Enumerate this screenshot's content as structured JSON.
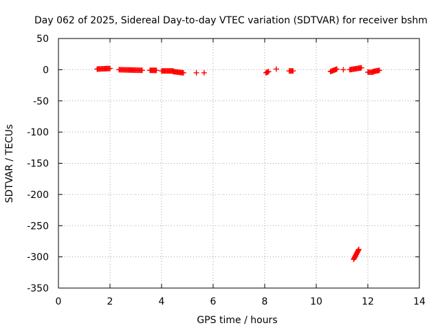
{
  "chart_data": {
    "type": "scatter",
    "title": "Day 062 of 2025, Sidereal Day-to-day VTEC variation (SDTVAR) for receiver bshm",
    "xlabel": "GPS time / hours",
    "ylabel": "SDTVAR / TECUs",
    "xlim": [
      0,
      14
    ],
    "ylim": [
      -350,
      50
    ],
    "xticks": [
      0,
      2,
      4,
      6,
      8,
      10,
      12,
      14
    ],
    "yticks": [
      50,
      0,
      -50,
      -100,
      -150,
      -200,
      -250,
      -300,
      -350
    ],
    "grid": true,
    "marker": "plus",
    "series": [
      {
        "name": "SDTVAR",
        "color": "#ff0000",
        "segments": [
          {
            "x_start": 1.5,
            "x_end": 2.0,
            "y_start": 1,
            "y_end": 2
          },
          {
            "x_start": 2.35,
            "x_end": 3.25,
            "y_start": 0,
            "y_end": -1
          },
          {
            "x_start": 3.55,
            "x_end": 3.8,
            "y_start": -1,
            "y_end": -1
          },
          {
            "x_start": 4.0,
            "x_end": 4.45,
            "y_start": -2,
            "y_end": -2
          },
          {
            "x_start": 4.45,
            "x_end": 4.85,
            "y_start": -3,
            "y_end": -5
          },
          {
            "x_start": 8.05,
            "x_end": 8.15,
            "y_start": -5,
            "y_end": -3
          },
          {
            "x_start": 8.95,
            "x_end": 9.1,
            "y_start": -2,
            "y_end": -2
          },
          {
            "x_start": 10.55,
            "x_end": 10.8,
            "y_start": -3,
            "y_end": 1
          },
          {
            "x_start": 11.3,
            "x_end": 11.75,
            "y_start": 0,
            "y_end": 3
          },
          {
            "x_start": 12.0,
            "x_end": 12.2,
            "y_start": -4,
            "y_end": -4
          },
          {
            "x_start": 12.2,
            "x_end": 12.45,
            "y_start": -3,
            "y_end": -1
          },
          {
            "x_start": 11.45,
            "x_end": 11.65,
            "y_start": -304,
            "y_end": -288
          }
        ],
        "points": [
          {
            "x": 5.35,
            "y": -5
          },
          {
            "x": 5.65,
            "y": -5
          },
          {
            "x": 8.45,
            "y": 1
          },
          {
            "x": 11.05,
            "y": 0
          }
        ]
      }
    ]
  }
}
